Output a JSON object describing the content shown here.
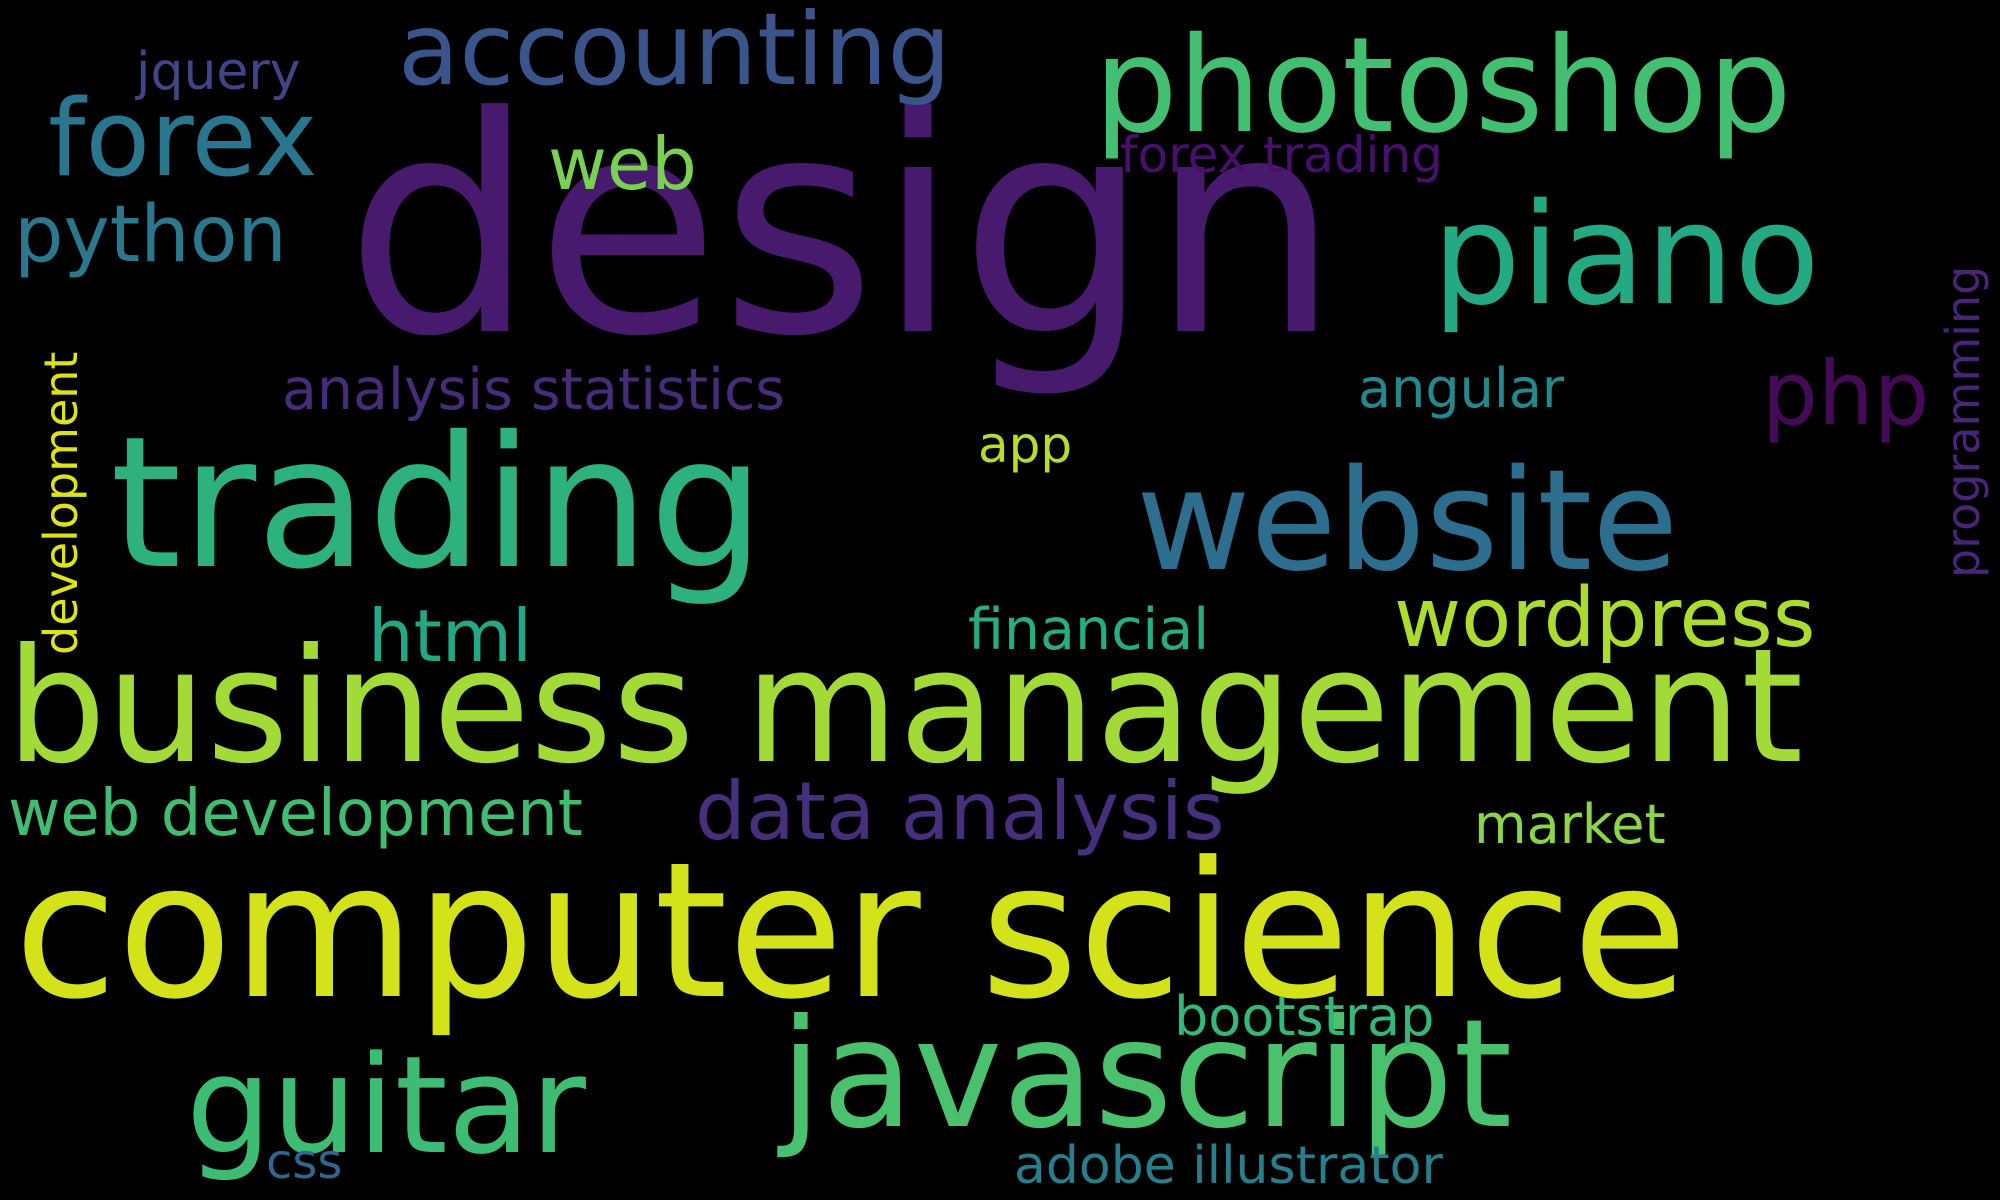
{
  "words": {
    "design": {
      "text": "design",
      "color": "#471a6e"
    },
    "computer_science": {
      "text": "computer science",
      "color": "#d4e21a"
    },
    "business_management": {
      "text": "business management",
      "color": "#a2da37"
    },
    "trading": {
      "text": "trading",
      "color": "#2db27d"
    },
    "javascript": {
      "text": "javascript",
      "color": "#4ac16d"
    },
    "guitar": {
      "text": "guitar",
      "color": "#3dbc74"
    },
    "website": {
      "text": "website",
      "color": "#2d6e8e"
    },
    "photoshop": {
      "text": "photoshop",
      "color": "#43bf71"
    },
    "piano": {
      "text": "piano",
      "color": "#24aa83"
    },
    "forex": {
      "text": "forex",
      "color": "#2a768e"
    },
    "accounting": {
      "text": "accounting",
      "color": "#3a548c"
    },
    "data_analysis": {
      "text": "data analysis",
      "color": "#462f7c"
    },
    "wordpress": {
      "text": "wordpress",
      "color": "#addc30"
    },
    "web_development": {
      "text": "web development",
      "color": "#40bd72"
    },
    "php": {
      "text": "php",
      "color": "#440a56"
    },
    "python": {
      "text": "python",
      "color": "#2b788e"
    },
    "html": {
      "text": "html",
      "color": "#22a884"
    },
    "analysis_statistics": {
      "text": "analysis statistics",
      "color": "#472c7a"
    },
    "financial": {
      "text": "financial",
      "color": "#26ad81"
    },
    "web": {
      "text": "web",
      "color": "#7ad151"
    },
    "bootstrap": {
      "text": "bootstrap",
      "color": "#35b779"
    },
    "adobe_illustrator": {
      "text": "adobe illustrator",
      "color": "#277f8e"
    },
    "market": {
      "text": "market",
      "color": "#8bd646"
    },
    "angular": {
      "text": "angular",
      "color": "#23898e"
    },
    "forex_trading": {
      "text": "forex trading",
      "color": "#46106c"
    },
    "development": {
      "text": "development",
      "color": "#dde318"
    },
    "programming": {
      "text": "programming",
      "color": "#482576"
    },
    "jquery": {
      "text": "jquery",
      "color": "#414487"
    },
    "app": {
      "text": "app",
      "color": "#b5de2b"
    },
    "css": {
      "text": "css",
      "color": "#31668e"
    }
  }
}
